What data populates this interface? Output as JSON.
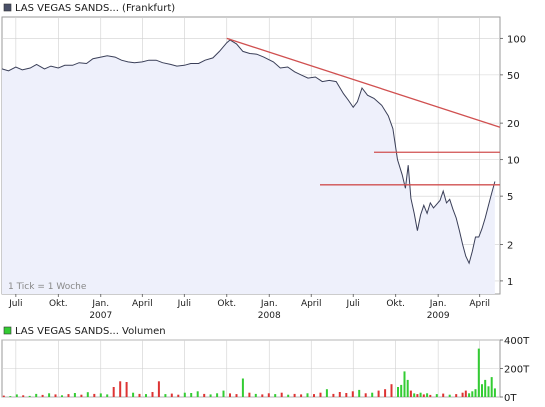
{
  "price_panel": {
    "title": "LAS VEGAS SANDS... (Frankfurt)",
    "legend_color": "#4a5068",
    "note": "1 Tick = 1 Woche"
  },
  "volume_panel": {
    "title": "LAS VEGAS SANDS... Volumen",
    "legend_color": "#33cc33"
  },
  "colors": {
    "price_line": "#3a3f58",
    "price_fill": "#eef0fb",
    "trend_lines": "#d05050",
    "volume_up": "#33cc33",
    "volume_down": "#dd3333",
    "grid": "#d0d0d0",
    "frame": "#9a9a9a"
  },
  "chart_data": [
    {
      "type": "line",
      "title": "LAS VEGAS SANDS... (Frankfurt)",
      "y_scale": "log",
      "y_ticks": [
        1,
        2,
        5,
        10,
        20,
        50,
        100
      ],
      "y_tick_labels": [
        "1",
        "2",
        "5",
        "10",
        "20",
        "50",
        "100"
      ],
      "ylim": [
        0.78,
        150
      ],
      "xlim": [
        "2006-06-01",
        "2009-05-15"
      ],
      "x_ticks": [
        {
          "date": "2006-07-01",
          "label": "Juli"
        },
        {
          "date": "2006-10-01",
          "label": "Okt."
        },
        {
          "date": "2007-01-01",
          "label": "Jan.",
          "year": "2007"
        },
        {
          "date": "2007-04-01",
          "label": "April"
        },
        {
          "date": "2007-07-01",
          "label": "Juli"
        },
        {
          "date": "2007-10-01",
          "label": "Okt."
        },
        {
          "date": "2008-01-01",
          "label": "Jan.",
          "year": "2008"
        },
        {
          "date": "2008-04-01",
          "label": "April"
        },
        {
          "date": "2008-07-01",
          "label": "Juli"
        },
        {
          "date": "2008-10-01",
          "label": "Okt."
        },
        {
          "date": "2009-01-01",
          "label": "Jan.",
          "year": "2009"
        },
        {
          "date": "2009-04-01",
          "label": "April"
        }
      ],
      "grid": true,
      "series": [
        {
          "points": [
            [
              "2006-06-01",
              56
            ],
            [
              "2006-06-15",
              54
            ],
            [
              "2006-07-01",
              58
            ],
            [
              "2006-07-15",
              55
            ],
            [
              "2006-08-01",
              57
            ],
            [
              "2006-08-15",
              61
            ],
            [
              "2006-09-01",
              56
            ],
            [
              "2006-09-15",
              59
            ],
            [
              "2006-10-01",
              57
            ],
            [
              "2006-10-15",
              60
            ],
            [
              "2006-11-01",
              60
            ],
            [
              "2006-11-15",
              63
            ],
            [
              "2006-12-01",
              62
            ],
            [
              "2006-12-15",
              68
            ],
            [
              "2007-01-01",
              70
            ],
            [
              "2007-01-15",
              72
            ],
            [
              "2007-02-01",
              70
            ],
            [
              "2007-02-15",
              66
            ],
            [
              "2007-03-01",
              64
            ],
            [
              "2007-03-15",
              63
            ],
            [
              "2007-04-01",
              64
            ],
            [
              "2007-04-15",
              66
            ],
            [
              "2007-05-01",
              66
            ],
            [
              "2007-05-15",
              63
            ],
            [
              "2007-06-01",
              61
            ],
            [
              "2007-06-15",
              59
            ],
            [
              "2007-07-01",
              60
            ],
            [
              "2007-07-15",
              62
            ],
            [
              "2007-08-01",
              62
            ],
            [
              "2007-08-15",
              66
            ],
            [
              "2007-09-01",
              69
            ],
            [
              "2007-09-15",
              78
            ],
            [
              "2007-10-01",
              92
            ],
            [
              "2007-10-08",
              97
            ],
            [
              "2007-10-22",
              90
            ],
            [
              "2007-11-05",
              78
            ],
            [
              "2007-11-20",
              75
            ],
            [
              "2007-12-05",
              74
            ],
            [
              "2007-12-20",
              70
            ],
            [
              "2008-01-10",
              64
            ],
            [
              "2008-01-25",
              57
            ],
            [
              "2008-02-10",
              58
            ],
            [
              "2008-02-25",
              53
            ],
            [
              "2008-03-10",
              50
            ],
            [
              "2008-03-25",
              47
            ],
            [
              "2008-04-10",
              48
            ],
            [
              "2008-04-25",
              44
            ],
            [
              "2008-05-10",
              45
            ],
            [
              "2008-05-25",
              44
            ],
            [
              "2008-06-10",
              35
            ],
            [
              "2008-06-20",
              31
            ],
            [
              "2008-07-01",
              27
            ],
            [
              "2008-07-10",
              30
            ],
            [
              "2008-07-20",
              39
            ],
            [
              "2008-08-01",
              34
            ],
            [
              "2008-08-15",
              32
            ],
            [
              "2008-09-01",
              28
            ],
            [
              "2008-09-15",
              23
            ],
            [
              "2008-09-25",
              18
            ],
            [
              "2008-10-05",
              10
            ],
            [
              "2008-10-15",
              7.5
            ],
            [
              "2008-10-22",
              5.8
            ],
            [
              "2008-10-28",
              9
            ],
            [
              "2008-11-03",
              4.8
            ],
            [
              "2008-11-10",
              3.6
            ],
            [
              "2008-11-17",
              2.6
            ],
            [
              "2008-11-24",
              3.5
            ],
            [
              "2008-12-01",
              4.2
            ],
            [
              "2008-12-08",
              3.6
            ],
            [
              "2008-12-15",
              4.4
            ],
            [
              "2008-12-22",
              4.0
            ],
            [
              "2009-01-05",
              4.6
            ],
            [
              "2009-01-12",
              5.5
            ],
            [
              "2009-01-19",
              4.4
            ],
            [
              "2009-01-26",
              4.7
            ],
            [
              "2009-02-02",
              3.9
            ],
            [
              "2009-02-09",
              3.3
            ],
            [
              "2009-02-16",
              2.6
            ],
            [
              "2009-02-23",
              2.0
            ],
            [
              "2009-03-02",
              1.6
            ],
            [
              "2009-03-09",
              1.4
            ],
            [
              "2009-03-16",
              1.75
            ],
            [
              "2009-03-23",
              2.3
            ],
            [
              "2009-03-30",
              2.3
            ],
            [
              "2009-04-06",
              2.7
            ],
            [
              "2009-04-13",
              3.3
            ],
            [
              "2009-04-20",
              4.2
            ],
            [
              "2009-04-27",
              5.3
            ],
            [
              "2009-05-04",
              6.6
            ]
          ]
        }
      ],
      "trend_lines": [
        {
          "from": [
            "2007-10-01",
            100
          ],
          "to": [
            "2009-05-15",
            18.5
          ]
        },
        {
          "from": [
            "2008-08-15",
            11.5
          ],
          "to": [
            "2009-05-15",
            11.5
          ]
        },
        {
          "from": [
            "2008-04-20",
            6.2
          ],
          "to": [
            "2009-05-15",
            6.2
          ]
        }
      ]
    },
    {
      "type": "bar",
      "title": "LAS VEGAS SANDS... Volumen",
      "y_ticks": [
        0,
        200,
        400
      ],
      "y_tick_labels": [
        "0T",
        "200T",
        "400T"
      ],
      "ylim": [
        0,
        400
      ],
      "xlim": [
        "2006-06-01",
        "2009-05-15"
      ],
      "grid": true,
      "bars": [
        [
          "2006-06-05",
          10,
          "down"
        ],
        [
          "2006-06-19",
          6,
          "up"
        ],
        [
          "2006-07-03",
          18,
          "up"
        ],
        [
          "2006-07-17",
          12,
          "down"
        ],
        [
          "2006-07-31",
          8,
          "up"
        ],
        [
          "2006-08-14",
          22,
          "up"
        ],
        [
          "2006-08-28",
          15,
          "down"
        ],
        [
          "2006-09-11",
          26,
          "up"
        ],
        [
          "2006-09-25",
          18,
          "down"
        ],
        [
          "2006-10-09",
          12,
          "up"
        ],
        [
          "2006-10-23",
          20,
          "down"
        ],
        [
          "2006-11-06",
          28,
          "up"
        ],
        [
          "2006-11-20",
          16,
          "down"
        ],
        [
          "2006-12-04",
          34,
          "up"
        ],
        [
          "2006-12-18",
          22,
          "down"
        ],
        [
          "2007-01-01",
          25,
          "up"
        ],
        [
          "2007-01-15",
          18,
          "up"
        ],
        [
          "2007-01-29",
          70,
          "down"
        ],
        [
          "2007-02-12",
          110,
          "down"
        ],
        [
          "2007-02-26",
          105,
          "down"
        ],
        [
          "2007-03-12",
          30,
          "up"
        ],
        [
          "2007-03-26",
          22,
          "down"
        ],
        [
          "2007-04-09",
          20,
          "up"
        ],
        [
          "2007-04-23",
          35,
          "down"
        ],
        [
          "2007-05-07",
          110,
          "down"
        ],
        [
          "2007-05-21",
          20,
          "up"
        ],
        [
          "2007-06-04",
          24,
          "down"
        ],
        [
          "2007-06-18",
          16,
          "down"
        ],
        [
          "2007-07-02",
          30,
          "up"
        ],
        [
          "2007-07-16",
          28,
          "up"
        ],
        [
          "2007-07-30",
          40,
          "up"
        ],
        [
          "2007-08-13",
          22,
          "down"
        ],
        [
          "2007-08-27",
          18,
          "up"
        ],
        [
          "2007-09-10",
          26,
          "up"
        ],
        [
          "2007-09-24",
          45,
          "up"
        ],
        [
          "2007-10-08",
          25,
          "down"
        ],
        [
          "2007-10-22",
          20,
          "down"
        ],
        [
          "2007-11-05",
          130,
          "up"
        ],
        [
          "2007-11-19",
          30,
          "down"
        ],
        [
          "2007-12-03",
          22,
          "up"
        ],
        [
          "2007-12-17",
          18,
          "down"
        ],
        [
          "2007-12-31",
          26,
          "down"
        ],
        [
          "2008-01-14",
          20,
          "up"
        ],
        [
          "2008-01-28",
          30,
          "down"
        ],
        [
          "2008-02-11",
          16,
          "up"
        ],
        [
          "2008-02-25",
          22,
          "down"
        ],
        [
          "2008-03-10",
          18,
          "down"
        ],
        [
          "2008-03-24",
          26,
          "up"
        ],
        [
          "2008-04-07",
          20,
          "down"
        ],
        [
          "2008-04-21",
          30,
          "down"
        ],
        [
          "2008-05-05",
          55,
          "up"
        ],
        [
          "2008-05-19",
          22,
          "down"
        ],
        [
          "2008-06-02",
          35,
          "down"
        ],
        [
          "2008-06-16",
          28,
          "down"
        ],
        [
          "2008-06-30",
          40,
          "down"
        ],
        [
          "2008-07-14",
          50,
          "up"
        ],
        [
          "2008-07-28",
          26,
          "down"
        ],
        [
          "2008-08-11",
          30,
          "up"
        ],
        [
          "2008-08-25",
          45,
          "down"
        ],
        [
          "2008-09-08",
          55,
          "down"
        ],
        [
          "2008-09-22",
          90,
          "down"
        ],
        [
          "2008-10-06",
          70,
          "up"
        ],
        [
          "2008-10-13",
          85,
          "up"
        ],
        [
          "2008-10-20",
          180,
          "up"
        ],
        [
          "2008-10-27",
          120,
          "up"
        ],
        [
          "2008-11-03",
          45,
          "down"
        ],
        [
          "2008-11-10",
          25,
          "up"
        ],
        [
          "2008-11-17",
          20,
          "down"
        ],
        [
          "2008-11-24",
          30,
          "up"
        ],
        [
          "2008-12-01",
          18,
          "down"
        ],
        [
          "2008-12-08",
          26,
          "up"
        ],
        [
          "2008-12-15",
          15,
          "down"
        ],
        [
          "2008-12-29",
          20,
          "up"
        ],
        [
          "2009-01-12",
          24,
          "down"
        ],
        [
          "2009-01-26",
          16,
          "up"
        ],
        [
          "2009-02-09",
          20,
          "down"
        ],
        [
          "2009-02-23",
          30,
          "down"
        ],
        [
          "2009-03-02",
          45,
          "down"
        ],
        [
          "2009-03-09",
          26,
          "up"
        ],
        [
          "2009-03-16",
          40,
          "up"
        ],
        [
          "2009-03-23",
          55,
          "up"
        ],
        [
          "2009-03-30",
          340,
          "up"
        ],
        [
          "2009-04-06",
          90,
          "up"
        ],
        [
          "2009-04-13",
          120,
          "up"
        ],
        [
          "2009-04-20",
          75,
          "up"
        ],
        [
          "2009-04-27",
          140,
          "up"
        ],
        [
          "2009-05-04",
          60,
          "up"
        ]
      ]
    }
  ]
}
